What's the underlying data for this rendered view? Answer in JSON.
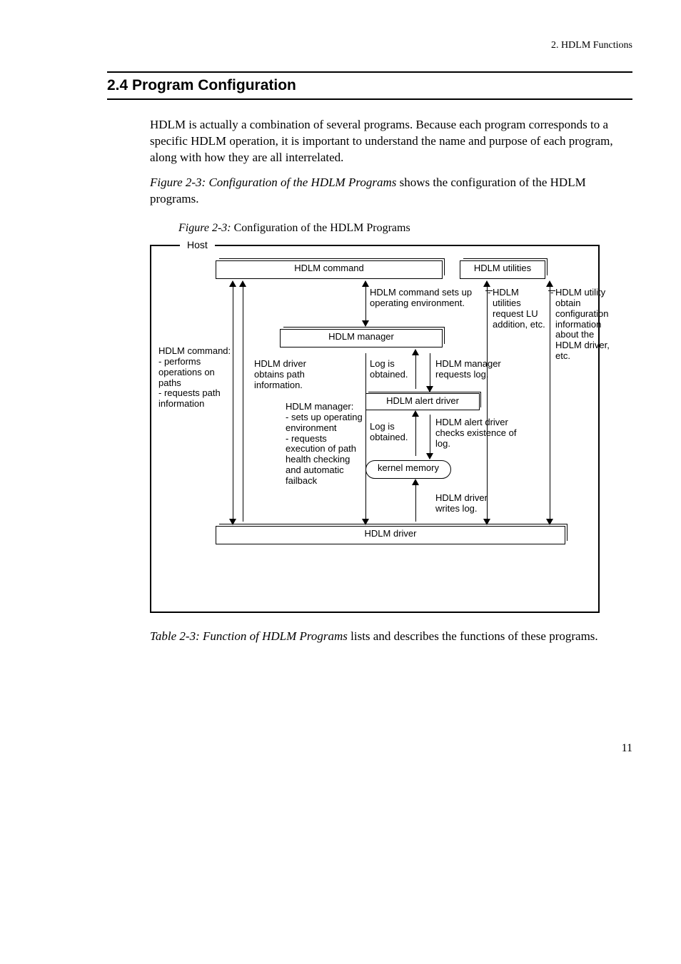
{
  "runningHead": "2.  HDLM Functions",
  "sectionHead": "2.4  Program Configuration",
  "para1": "HDLM is actually a combination of several programs. Because each program corresponds to a specific HDLM operation, it is important to understand the name and purpose of each program, along with how they are all interrelated.",
  "para2a": "Figure  2-3:  Configuration of the HDLM Programs",
  "para2b": " shows the configuration of the HDLM programs.",
  "figLabelA": "Figure  2-3:  ",
  "figLabelB": "Configuration of the HDLM Programs",
  "para3a": "Table  2-3:  Function of HDLM Programs",
  "para3b": " lists and describes the functions of these programs.",
  "pageNum": "11",
  "fig": {
    "hostLabel": "Host",
    "hdlmCommand": "HDLM command",
    "hdlmUtilities": "HDLM utilities",
    "hdlmManager": "HDLM manager",
    "hdlmAlertDriver": "HDLM alert driver",
    "kernelMemory": "kernel memory",
    "hdlmDriver": "HDLM driver",
    "noteCmd1": "HDLM command sets up operating environment.",
    "noteUtilLeft": "HDLM utilities request LU addition, etc.",
    "noteUtilRight": "HDLM utility obtain configuration information about the HDLM driver, etc.",
    "noteLeft": "HDLM command:\n- performs operations on paths\n- requests path information",
    "noteDriverPath": "HDLM driver obtains path information.",
    "noteMgr": "HDLM manager:\n- sets up operating environment\n- requests execution of path health checking and automatic failback",
    "noteLog1": "Log is obtained.",
    "noteMgrReqLog": "HDLM manager requests log.",
    "noteLog2": "Log is obtained.",
    "noteAlertCheck": "HDLM alert driver checks existence of log.",
    "noteDriverWrites": "HDLM driver writes log."
  }
}
